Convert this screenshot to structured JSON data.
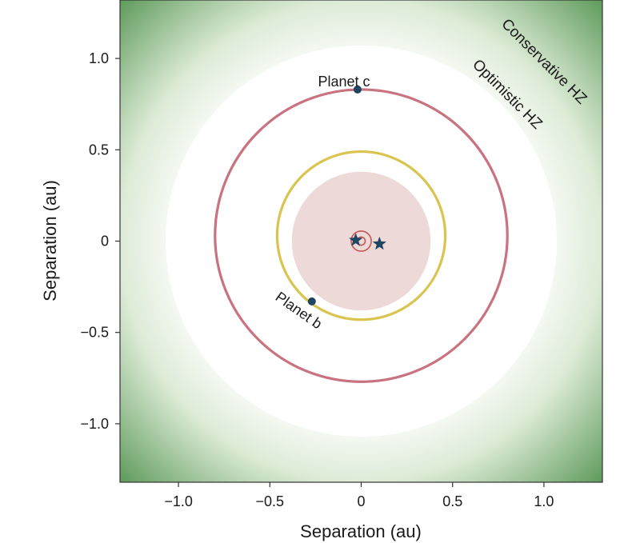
{
  "chart_data": {
    "type": "scatter",
    "xlabel": "Separation (au)",
    "ylabel": "Separation (au)",
    "xlim": [
      -1.32,
      1.32
    ],
    "ylim": [
      -1.32,
      1.32
    ],
    "xticks": [
      -1.0,
      -0.5,
      0,
      0.5,
      1.0
    ],
    "yticks": [
      -1.0,
      -0.5,
      0,
      0.5,
      1.0
    ],
    "xtick_labels": [
      "−1.0",
      "−0.5",
      "0",
      "0.5",
      "1.0"
    ],
    "ytick_labels": [
      "−1.0",
      "−0.5",
      "0",
      "0.5",
      "1.0"
    ],
    "grid": false,
    "zones": [
      {
        "label": "Optimistic HZ",
        "inner_radius": 1.07,
        "outer_radius": 1.32,
        "color": "#dcebd6"
      },
      {
        "label": "Conservative HZ",
        "inner_radius": 1.32,
        "color": "#5e9a5a"
      }
    ],
    "inner_region": {
      "radius": 0.38,
      "color": "#eed9d9"
    },
    "orbits": [
      {
        "name": "Planet c",
        "center": [
          0,
          0.03
        ],
        "radius": 0.8,
        "color": "#c8737f"
      },
      {
        "name": "Planet b",
        "center": [
          0,
          0.03
        ],
        "radius": 0.46,
        "color": "#d9c44f"
      },
      {
        "name": "binary-outer",
        "center": [
          0,
          0
        ],
        "radius": 0.055,
        "color": "#c05a52"
      },
      {
        "name": "binary-inner",
        "center": [
          0,
          0
        ],
        "radius": 0.022,
        "color": "#c05a52"
      }
    ],
    "planets": [
      {
        "label": "Planet c",
        "x": -0.02,
        "y": 0.83
      },
      {
        "label": "Planet b",
        "x": -0.27,
        "y": -0.33
      }
    ],
    "stars": [
      {
        "x": -0.03,
        "y": 0.005
      },
      {
        "x": 0.1,
        "y": -0.015
      }
    ],
    "colors": {
      "planet": "#1f4560",
      "star": "#1f4560",
      "frame": "#333333"
    }
  }
}
